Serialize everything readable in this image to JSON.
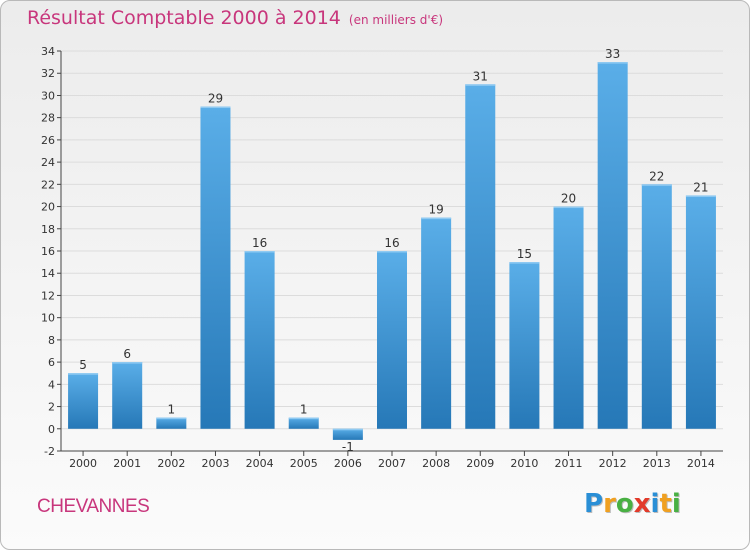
{
  "title": "Résultat Comptable 2000 à 2014",
  "subtitle": "(en milliers d'€)",
  "commune": "CHEVANNES",
  "logo": {
    "letters": [
      "P",
      "r",
      "o",
      "x",
      "i",
      "t",
      "i"
    ],
    "colors": [
      "#2a8fd6",
      "#f0a020",
      "#49b043",
      "#e23a2a",
      "#2a8fd6",
      "#f0a020",
      "#49b043"
    ]
  },
  "colors": {
    "bar_top": "#5aaee8",
    "bar_bottom": "#2678b7",
    "title": "#c8367c",
    "grid": "#dcdcdc",
    "axis": "#444444"
  },
  "chart_data": {
    "type": "bar",
    "categories": [
      "2000",
      "2001",
      "2002",
      "2003",
      "2004",
      "2005",
      "2006",
      "2007",
      "2008",
      "2009",
      "2010",
      "2011",
      "2012",
      "2013",
      "2014"
    ],
    "values": [
      5,
      6,
      1,
      29,
      16,
      1,
      -1,
      16,
      19,
      31,
      15,
      20,
      33,
      22,
      21
    ],
    "ylim": [
      -2,
      34
    ],
    "yticks": [
      -2,
      0,
      2,
      4,
      6,
      8,
      10,
      12,
      14,
      16,
      18,
      20,
      22,
      24,
      26,
      28,
      30,
      32,
      34
    ],
    "grid": true,
    "data_labels": true
  }
}
